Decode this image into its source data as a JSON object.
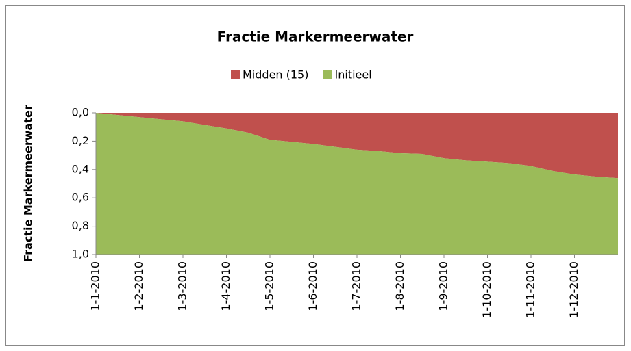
{
  "chart_data": {
    "type": "stacked_area",
    "title": "Fractie Markermeerwater",
    "y_label": "Fractie Markermeerwater",
    "categories": [
      "1-1-2010",
      null,
      "1-2-2010",
      null,
      "1-3-2010",
      null,
      "1-4-2010",
      null,
      "1-5-2010",
      null,
      "1-6-2010",
      null,
      "1-7-2010",
      null,
      "1-8-2010",
      null,
      "1-9-2010",
      null,
      "1-10-2010",
      null,
      "1-11-2010",
      null,
      "1-12-2010",
      null,
      null
    ],
    "series": [
      {
        "name": "Midden (15)",
        "color": "#c0504d",
        "values": [
          0,
          0.015,
          0.03,
          0.045,
          0.06,
          0.085,
          0.11,
          0.14,
          0.19,
          0.205,
          0.22,
          0.24,
          0.26,
          0.27,
          0.285,
          0.29,
          0.32,
          0.335,
          0.345,
          0.355,
          0.375,
          0.41,
          0.435,
          0.45,
          0.46
        ]
      },
      {
        "name": "Initieel",
        "color": "#9bbb59",
        "values": [
          1,
          0.985,
          0.97,
          0.955,
          0.94,
          0.915,
          0.89,
          0.86,
          0.81,
          0.795,
          0.78,
          0.76,
          0.74,
          0.73,
          0.715,
          0.71,
          0.68,
          0.665,
          0.655,
          0.645,
          0.625,
          0.59,
          0.565,
          0.55,
          0.54
        ]
      }
    ],
    "ylim": [
      0,
      1
    ],
    "y_inverted": true,
    "yticks": [
      {
        "value": 0,
        "label": "0,0"
      },
      {
        "value": 0.2,
        "label": "0,2"
      },
      {
        "value": 0.4,
        "label": "0,4"
      },
      {
        "value": 0.6,
        "label": "0,6"
      },
      {
        "value": 0.8,
        "label": "0,8"
      },
      {
        "value": 1,
        "label": "1,0"
      }
    ],
    "legend": "top"
  }
}
